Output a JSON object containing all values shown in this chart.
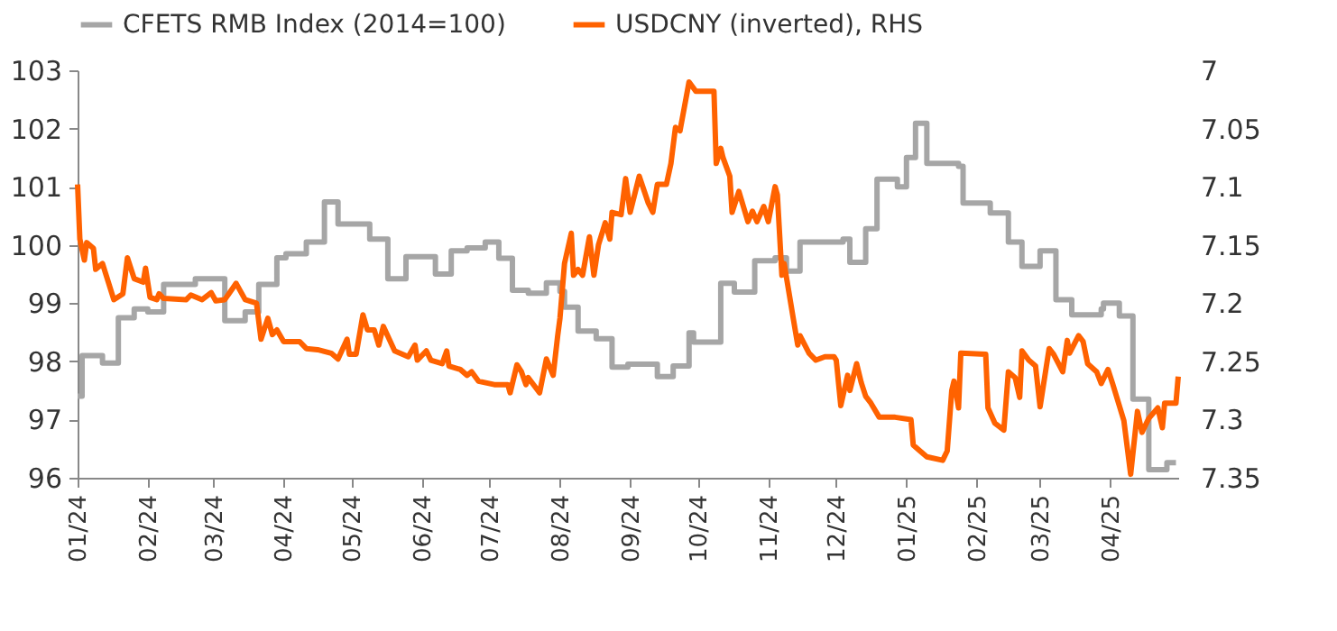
{
  "chart_data": {
    "type": "line",
    "xlim": [
      "2024-01-01",
      "2025-05-01"
    ],
    "xticks": [
      {
        "value": "2024-01-01",
        "label": "01/24"
      },
      {
        "value": "2024-02-01",
        "label": "02/24"
      },
      {
        "value": "2024-03-01",
        "label": "03/24"
      },
      {
        "value": "2024-04-01",
        "label": "04/24"
      },
      {
        "value": "2024-05-01",
        "label": "05/24"
      },
      {
        "value": "2024-06-01",
        "label": "06/24"
      },
      {
        "value": "2024-07-01",
        "label": "07/24"
      },
      {
        "value": "2024-08-01",
        "label": "08/24"
      },
      {
        "value": "2024-09-01",
        "label": "09/24"
      },
      {
        "value": "2024-10-01",
        "label": "10/24"
      },
      {
        "value": "2024-11-01",
        "label": "11/24"
      },
      {
        "value": "2024-12-01",
        "label": "12/24"
      },
      {
        "value": "2025-01-01",
        "label": "01/25"
      },
      {
        "value": "2025-02-01",
        "label": "02/25"
      },
      {
        "value": "2025-03-01",
        "label": "03/25"
      },
      {
        "value": "2025-04-01",
        "label": "04/25"
      }
    ],
    "ylim": [
      96,
      103
    ],
    "yticks": [
      96,
      97,
      98,
      99,
      100,
      101,
      102,
      103
    ],
    "y2lim": [
      7.35,
      7
    ],
    "y2ticks": [
      7,
      7.05,
      7.1,
      7.15,
      7.2,
      7.25,
      7.3,
      7.35
    ],
    "legend": "top",
    "grid": false,
    "line_style": "solid",
    "series": [
      {
        "name": "CFETS RMB Index (2014=100)",
        "type": "step",
        "color": "#a6a6a6",
        "x": [
          "2024-01-01",
          "2024-01-03",
          "2024-01-12",
          "2024-01-19",
          "2024-01-26",
          "2024-02-01",
          "2024-02-08",
          "2024-02-22",
          "2024-03-06",
          "2024-03-15",
          "2024-03-21",
          "2024-03-29",
          "2024-04-02",
          "2024-04-11",
          "2024-04-19",
          "2024-04-25",
          "2024-05-09",
          "2024-05-17",
          "2024-05-25",
          "2024-06-07",
          "2024-06-14",
          "2024-06-21",
          "2024-06-29",
          "2024-07-05",
          "2024-07-11",
          "2024-07-18",
          "2024-07-26",
          "2024-08-01",
          "2024-08-03",
          "2024-08-09",
          "2024-08-17",
          "2024-08-24",
          "2024-08-31",
          "2024-09-13",
          "2024-09-20",
          "2024-09-27",
          "2024-09-29",
          "2024-10-11",
          "2024-10-17",
          "2024-10-26",
          "2024-11-04",
          "2024-11-09",
          "2024-11-15",
          "2024-12-04",
          "2024-12-07",
          "2024-12-14",
          "2024-12-19",
          "2024-12-28",
          "2025-01-01",
          "2025-01-05",
          "2025-01-10",
          "2025-01-24",
          "2025-01-26",
          "2025-02-07",
          "2025-02-15",
          "2025-02-21",
          "2025-03-01",
          "2025-03-08",
          "2025-03-15",
          "2025-03-28",
          "2025-03-29",
          "2025-04-05",
          "2025-04-11",
          "2025-04-18",
          "2025-04-26",
          "2025-04-30"
        ],
        "values": [
          97.4,
          98.1,
          97.97,
          98.75,
          98.9,
          98.85,
          99.32,
          99.42,
          98.7,
          98.85,
          99.32,
          99.78,
          99.85,
          100.05,
          100.74,
          100.36,
          100.1,
          99.42,
          99.8,
          99.5,
          99.9,
          99.95,
          100.05,
          99.77,
          99.22,
          99.17,
          99.35,
          99.2,
          98.93,
          98.52,
          98.39,
          97.9,
          97.95,
          97.74,
          97.92,
          98.49,
          98.33,
          99.34,
          99.19,
          99.73,
          99.78,
          99.55,
          100.05,
          100.1,
          99.7,
          100.28,
          101.13,
          101.0,
          101.5,
          102.09,
          101.4,
          101.35,
          100.72,
          100.55,
          100.05,
          99.63,
          99.9,
          99.06,
          98.8,
          98.9,
          99.0,
          98.78,
          97.35,
          96.14,
          96.26,
          96.26
        ]
      },
      {
        "name": "USDCNY (inverted), RHS",
        "axis": "y2",
        "color": "#ff6200",
        "x": [
          "2024-01-01",
          "2024-01-02",
          "2024-01-04",
          "2024-01-05",
          "2024-01-08",
          "2024-01-09",
          "2024-01-12",
          "2024-01-17",
          "2024-01-21",
          "2024-01-23",
          "2024-01-26",
          "2024-01-30",
          "2024-01-31",
          "2024-02-02",
          "2024-02-05",
          "2024-02-06",
          "2024-02-08",
          "2024-02-18",
          "2024-02-20",
          "2024-02-25",
          "2024-02-29",
          "2024-03-02",
          "2024-03-06",
          "2024-03-11",
          "2024-03-15",
          "2024-03-20",
          "2024-03-22",
          "2024-03-25",
          "2024-03-27",
          "2024-03-29",
          "2024-04-01",
          "2024-04-08",
          "2024-04-11",
          "2024-04-16",
          "2024-04-22",
          "2024-04-25",
          "2024-04-29",
          "2024-04-30",
          "2024-05-03",
          "2024-05-06",
          "2024-05-08",
          "2024-05-11",
          "2024-05-13",
          "2024-05-15",
          "2024-05-20",
          "2024-05-26",
          "2024-05-29",
          "2024-05-30",
          "2024-06-03",
          "2024-06-05",
          "2024-06-10",
          "2024-06-12",
          "2024-06-13",
          "2024-06-18",
          "2024-06-21",
          "2024-06-23",
          "2024-06-26",
          "2024-07-03",
          "2024-07-09",
          "2024-07-10",
          "2024-07-13",
          "2024-07-15",
          "2024-07-17",
          "2024-07-18",
          "2024-07-23",
          "2024-07-26",
          "2024-07-29",
          "2024-07-31",
          "2024-08-01",
          "2024-08-03",
          "2024-08-06",
          "2024-08-07",
          "2024-08-09",
          "2024-08-11",
          "2024-08-14",
          "2024-08-16",
          "2024-08-18",
          "2024-08-21",
          "2024-08-23",
          "2024-08-24",
          "2024-08-28",
          "2024-08-30",
          "2024-09-01",
          "2024-09-05",
          "2024-09-09",
          "2024-09-11",
          "2024-09-13",
          "2024-09-17",
          "2024-09-19",
          "2024-09-21",
          "2024-09-23",
          "2024-09-25",
          "2024-09-27",
          "2024-09-30",
          "2024-10-08",
          "2024-10-09",
          "2024-10-11",
          "2024-10-12",
          "2024-10-15",
          "2024-10-16",
          "2024-10-19",
          "2024-10-23",
          "2024-10-25",
          "2024-10-27",
          "2024-10-30",
          "2024-11-01",
          "2024-11-04",
          "2024-11-05",
          "2024-11-07",
          "2024-11-08",
          "2024-11-12",
          "2024-11-14",
          "2024-11-15",
          "2024-11-19",
          "2024-11-22",
          "2024-11-26",
          "2024-11-30",
          "2024-12-01",
          "2024-12-03",
          "2024-12-06",
          "2024-12-07",
          "2024-12-10",
          "2024-12-12",
          "2024-12-14",
          "2024-12-16",
          "2024-12-20",
          "2024-12-27",
          "2025-01-03",
          "2025-01-04",
          "2025-01-10",
          "2025-01-17",
          "2025-01-19",
          "2025-01-21",
          "2025-01-22",
          "2025-01-24",
          "2025-01-25",
          "2025-02-05",
          "2025-02-06",
          "2025-02-09",
          "2025-02-13",
          "2025-02-15",
          "2025-02-18",
          "2025-02-20",
          "2025-02-21",
          "2025-02-24",
          "2025-02-27",
          "2025-03-01",
          "2025-03-05",
          "2025-03-07",
          "2025-03-11",
          "2025-03-13",
          "2025-03-14",
          "2025-03-18",
          "2025-03-20",
          "2025-03-22",
          "2025-03-26",
          "2025-03-28",
          "2025-03-31",
          "2025-04-02",
          "2025-04-07",
          "2025-04-10",
          "2025-04-13",
          "2025-04-15",
          "2025-04-18",
          "2025-04-22",
          "2025-04-24",
          "2025-04-25",
          "2025-04-30",
          "2025-05-01"
        ],
        "values": [
          7.098,
          7.145,
          7.163,
          7.148,
          7.153,
          7.171,
          7.166,
          7.197,
          7.192,
          7.161,
          7.179,
          7.182,
          7.17,
          7.195,
          7.197,
          7.192,
          7.196,
          7.197,
          7.193,
          7.197,
          7.191,
          7.198,
          7.197,
          7.183,
          7.197,
          7.2,
          7.231,
          7.213,
          7.227,
          7.223,
          7.233,
          7.233,
          7.239,
          7.24,
          7.243,
          7.248,
          7.231,
          7.244,
          7.244,
          7.21,
          7.223,
          7.223,
          7.236,
          7.22,
          7.241,
          7.246,
          7.236,
          7.249,
          7.241,
          7.249,
          7.252,
          7.241,
          7.254,
          7.257,
          7.262,
          7.259,
          7.267,
          7.27,
          7.27,
          7.277,
          7.253,
          7.259,
          7.27,
          7.264,
          7.277,
          7.248,
          7.262,
          7.228,
          7.213,
          7.166,
          7.14,
          7.176,
          7.171,
          7.176,
          7.143,
          7.176,
          7.15,
          7.131,
          7.145,
          7.122,
          7.124,
          7.093,
          7.122,
          7.091,
          7.114,
          7.122,
          7.098,
          7.098,
          7.08,
          7.049,
          7.052,
          7.031,
          7.01,
          7.018,
          7.018,
          7.08,
          7.067,
          7.075,
          7.091,
          7.122,
          7.104,
          7.13,
          7.121,
          7.13,
          7.117,
          7.13,
          7.1,
          7.107,
          7.176,
          7.166,
          7.213,
          7.236,
          7.228,
          7.243,
          7.249,
          7.246,
          7.246,
          7.249,
          7.288,
          7.262,
          7.275,
          7.252,
          7.268,
          7.28,
          7.285,
          7.298,
          7.298,
          7.3,
          7.322,
          7.332,
          7.335,
          7.327,
          7.275,
          7.267,
          7.29,
          7.243,
          7.244,
          7.29,
          7.303,
          7.309,
          7.259,
          7.264,
          7.281,
          7.241,
          7.249,
          7.254,
          7.289,
          7.239,
          7.244,
          7.259,
          7.232,
          7.243,
          7.228,
          7.233,
          7.252,
          7.259,
          7.269,
          7.257,
          7.269,
          7.301,
          7.347,
          7.293,
          7.311,
          7.299,
          7.29,
          7.307,
          7.286,
          7.286,
          7.263
        ]
      }
    ]
  }
}
